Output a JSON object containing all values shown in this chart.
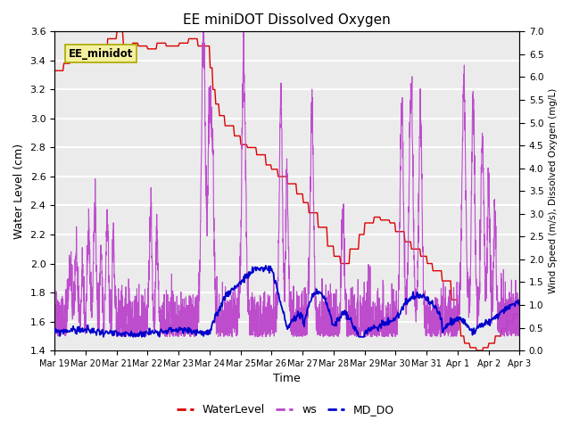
{
  "title": "EE miniDOT Dissolved Oxygen",
  "xlabel": "Time",
  "ylabel_left": "Water Level (cm)",
  "ylabel_right": "Wind Speed (m/s), Dissolved Oxygen (mg/L)",
  "ylim_left": [
    1.4,
    3.6
  ],
  "ylim_right": [
    0.0,
    7.0
  ],
  "yticks_left": [
    1.4,
    1.6,
    1.8,
    2.0,
    2.2,
    2.4,
    2.6,
    2.8,
    3.0,
    3.2,
    3.4,
    3.6
  ],
  "yticks_right": [
    0.0,
    0.5,
    1.0,
    1.5,
    2.0,
    2.5,
    3.0,
    3.5,
    4.0,
    4.5,
    5.0,
    5.5,
    6.0,
    6.5,
    7.0
  ],
  "xtick_labels": [
    "Mar 19",
    "Mar 20",
    "Mar 21",
    "Mar 22",
    "Mar 23",
    "Mar 24",
    "Mar 25",
    "Mar 26",
    "Mar 27",
    "Mar 28",
    "Mar 29",
    "Mar 30",
    "Mar 31",
    "Apr 1",
    "Apr 2",
    "Apr 3"
  ],
  "annotation_text": "EE_minidot",
  "color_wl": "#dd0000",
  "color_ws": "#bb44cc",
  "color_do": "#0000cc",
  "legend_labels": [
    "WaterLevel",
    "ws",
    "MD_DO"
  ],
  "background_gray": "#ebebeb",
  "n_days": 15.0
}
